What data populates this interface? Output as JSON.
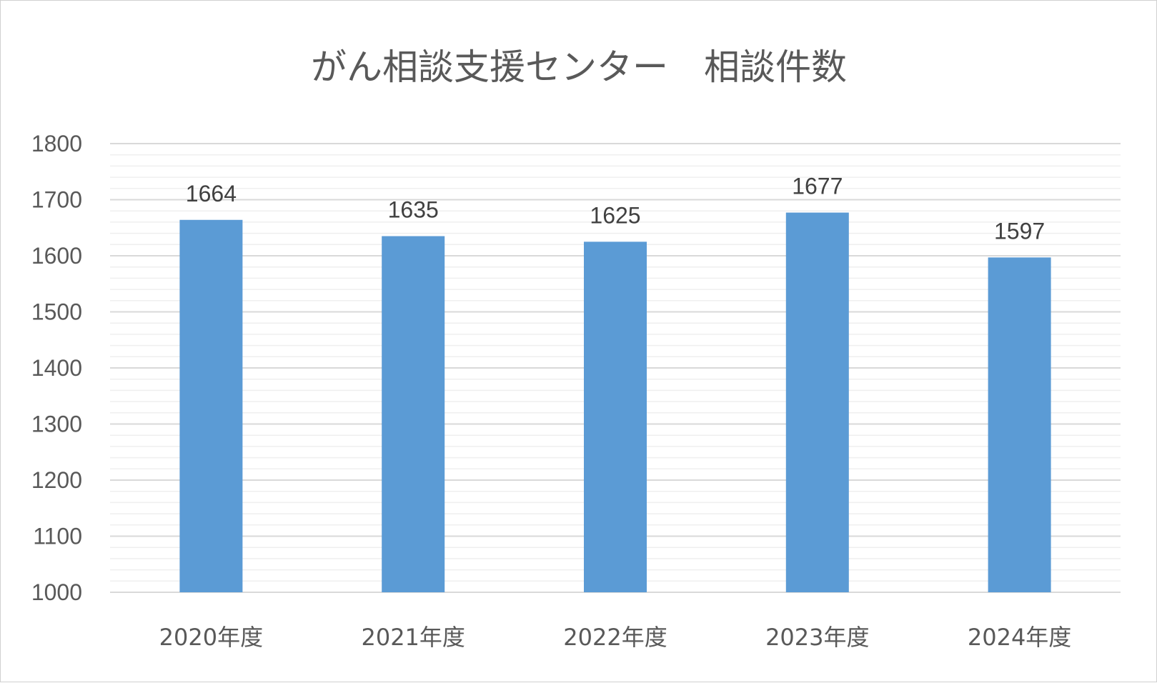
{
  "chart_data": {
    "type": "bar",
    "title": "がん相談支援センター　相談件数",
    "xlabel": "",
    "ylabel": "",
    "categories": [
      "2020年度",
      "2021年度",
      "2022年度",
      "2023年度",
      "2024年度"
    ],
    "values": [
      1664,
      1635,
      1625,
      1677,
      1597
    ],
    "data_labels": [
      "1664",
      "1635",
      "1625",
      "1677",
      "1597"
    ],
    "ylim": [
      1000,
      1800
    ],
    "yticks": [
      1000,
      1100,
      1200,
      1300,
      1400,
      1500,
      1600,
      1700,
      1800
    ],
    "minor_gridlines_per_major": 5,
    "grid": true,
    "legend": "none",
    "colors": {
      "bar": "#5b9bd5",
      "major_grid": "#d9d9d9",
      "minor_grid": "#efefef",
      "text": "#595959",
      "data_label": "#404040"
    }
  }
}
